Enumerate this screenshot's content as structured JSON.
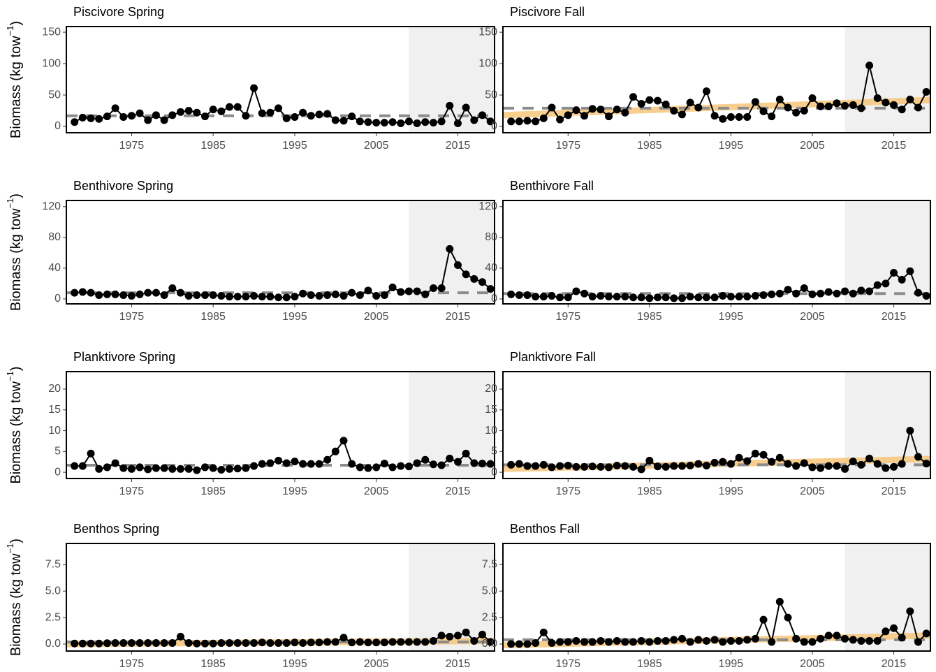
{
  "y_axis_label": {
    "text": "Biomass (kg tow",
    "sup": "−1",
    "close": ")"
  },
  "chart_data": [
    {
      "type": "line",
      "title": "Piscivore Spring",
      "xlim": [
        1967,
        2019.5
      ],
      "xticks": [
        1975,
        1985,
        1995,
        2005,
        2015
      ],
      "ylim": [
        -10,
        159
      ],
      "yticks": [
        0,
        50,
        100,
        150
      ],
      "shade_from": 2009,
      "mean": 17,
      "color": "#000000",
      "x": [
        1968,
        1969,
        1970,
        1971,
        1972,
        1973,
        1974,
        1975,
        1976,
        1977,
        1978,
        1979,
        1980,
        1981,
        1982,
        1983,
        1984,
        1985,
        1986,
        1987,
        1988,
        1989,
        1990,
        1991,
        1992,
        1993,
        1994,
        1995,
        1996,
        1997,
        1998,
        1999,
        2000,
        2001,
        2002,
        2003,
        2004,
        2005,
        2006,
        2007,
        2008,
        2009,
        2010,
        2011,
        2012,
        2013,
        2014,
        2015,
        2016,
        2017,
        2018,
        2019
      ],
      "values": [
        7,
        14,
        13,
        12,
        16,
        29,
        15,
        17,
        21,
        10,
        18,
        10,
        18,
        23,
        25,
        22,
        16,
        27,
        24,
        31,
        31,
        17,
        61,
        21,
        22,
        29,
        13,
        15,
        22,
        17,
        19,
        20,
        10,
        9,
        16,
        8,
        7,
        6,
        6,
        7,
        5,
        8,
        5,
        7,
        6,
        8,
        33,
        5,
        30,
        10,
        18,
        8
      ]
    },
    {
      "type": "line",
      "title": "Piscivore Fall",
      "xlim": [
        1967,
        2019.5
      ],
      "xticks": [
        1975,
        1985,
        1995,
        2005,
        2015
      ],
      "ylim": [
        -10,
        159
      ],
      "yticks": [
        0,
        50,
        100,
        150
      ],
      "shade_from": 2009,
      "mean": 29,
      "trend": [
        18,
        42
      ],
      "color": "#000000",
      "x": [
        1968,
        1969,
        1970,
        1971,
        1972,
        1973,
        1974,
        1975,
        1976,
        1977,
        1978,
        1979,
        1980,
        1981,
        1982,
        1983,
        1984,
        1985,
        1986,
        1987,
        1988,
        1989,
        1990,
        1991,
        1992,
        1993,
        1994,
        1995,
        1996,
        1997,
        1998,
        1999,
        2000,
        2001,
        2002,
        2003,
        2004,
        2005,
        2006,
        2007,
        2008,
        2009,
        2010,
        2011,
        2012,
        2013,
        2014,
        2015,
        2016,
        2017,
        2018,
        2019
      ],
      "values": [
        8,
        8,
        9,
        8,
        13,
        30,
        11,
        18,
        26,
        17,
        28,
        27,
        16,
        27,
        22,
        47,
        36,
        42,
        41,
        35,
        25,
        19,
        38,
        30,
        56,
        17,
        12,
        15,
        15,
        15,
        39,
        24,
        16,
        43,
        30,
        22,
        25,
        45,
        32,
        32,
        37,
        33,
        34,
        29,
        97,
        45,
        38,
        34,
        27,
        43,
        30,
        55
      ]
    },
    {
      "type": "line",
      "title": "Benthivore Spring",
      "xlim": [
        1967,
        2019.5
      ],
      "xticks": [
        1975,
        1985,
        1995,
        2005,
        2015
      ],
      "ylim": [
        -6.4,
        128
      ],
      "yticks": [
        0,
        40,
        80,
        120
      ],
      "shade_from": 2009,
      "mean": 8,
      "color": "#000000",
      "x": [
        1968,
        1969,
        1970,
        1971,
        1972,
        1973,
        1974,
        1975,
        1976,
        1977,
        1978,
        1979,
        1980,
        1981,
        1982,
        1983,
        1984,
        1985,
        1986,
        1987,
        1988,
        1989,
        1990,
        1991,
        1992,
        1993,
        1994,
        1995,
        1996,
        1997,
        1998,
        1999,
        2000,
        2001,
        2002,
        2003,
        2004,
        2005,
        2006,
        2007,
        2008,
        2009,
        2010,
        2011,
        2012,
        2013,
        2014,
        2015,
        2016,
        2017,
        2018,
        2019
      ],
      "values": [
        8,
        9,
        8,
        5,
        6,
        6,
        5,
        4,
        6,
        8,
        8,
        5,
        14,
        8,
        4,
        5,
        5,
        5,
        4,
        3,
        3,
        3,
        4,
        3,
        3,
        2,
        2,
        3,
        7,
        5,
        4,
        5,
        6,
        4,
        8,
        5,
        11,
        4,
        5,
        15,
        9,
        10,
        10,
        6,
        14,
        14,
        65,
        44,
        32,
        26,
        22,
        13
      ]
    },
    {
      "type": "line",
      "title": "Benthivore Fall",
      "xlim": [
        1967,
        2019.5
      ],
      "xticks": [
        1975,
        1985,
        1995,
        2005,
        2015
      ],
      "ylim": [
        -6.4,
        128
      ],
      "yticks": [
        0,
        40,
        80,
        120
      ],
      "shade_from": 2009,
      "mean": 7,
      "color": "#000000",
      "x": [
        1968,
        1969,
        1970,
        1971,
        1972,
        1973,
        1974,
        1975,
        1976,
        1977,
        1978,
        1979,
        1980,
        1981,
        1982,
        1983,
        1984,
        1985,
        1986,
        1987,
        1988,
        1989,
        1990,
        1991,
        1992,
        1993,
        1994,
        1995,
        1996,
        1997,
        1998,
        1999,
        2000,
        2001,
        2002,
        2003,
        2004,
        2005,
        2006,
        2007,
        2008,
        2009,
        2010,
        2011,
        2012,
        2013,
        2014,
        2015,
        2016,
        2017,
        2018,
        2019
      ],
      "values": [
        6,
        5,
        5,
        3,
        3,
        4,
        2,
        2,
        10,
        7,
        3,
        4,
        3,
        3,
        3,
        2,
        2,
        1,
        2,
        2,
        1,
        1,
        3,
        2,
        2,
        2,
        4,
        3,
        3,
        3,
        4,
        5,
        6,
        7,
        12,
        7,
        14,
        6,
        7,
        9,
        7,
        10,
        7,
        11,
        10,
        18,
        20,
        34,
        25,
        36,
        8,
        4
      ]
    },
    {
      "type": "line",
      "title": "Planktivore Spring",
      "xlim": [
        1967,
        2019.5
      ],
      "xticks": [
        1975,
        1985,
        1995,
        2005,
        2015
      ],
      "ylim": [
        -1.5,
        24.2
      ],
      "yticks": [
        0,
        5,
        10,
        15,
        20
      ],
      "shade_from": 2009,
      "mean": 1.7,
      "color": "#000000",
      "x": [
        1968,
        1969,
        1970,
        1971,
        1972,
        1973,
        1974,
        1975,
        1976,
        1977,
        1978,
        1979,
        1980,
        1981,
        1982,
        1983,
        1984,
        1985,
        1986,
        1987,
        1988,
        1989,
        1990,
        1991,
        1992,
        1993,
        1994,
        1995,
        1996,
        1997,
        1998,
        1999,
        2000,
        2001,
        2002,
        2003,
        2004,
        2005,
        2006,
        2007,
        2008,
        2009,
        2010,
        2011,
        2012,
        2013,
        2014,
        2015,
        2016,
        2017,
        2018,
        2019
      ],
      "values": [
        1.5,
        1.5,
        4.5,
        0.8,
        1.2,
        2.2,
        1.0,
        0.8,
        1.2,
        0.7,
        1.0,
        1.0,
        0.8,
        0.8,
        0.8,
        0.5,
        1.2,
        1.0,
        0.6,
        0.8,
        0.9,
        1.0,
        1.5,
        2.0,
        2.2,
        2.8,
        2.2,
        2.6,
        2.0,
        2.0,
        2.0,
        3.0,
        5.0,
        7.6,
        2.0,
        1.2,
        1.0,
        1.2,
        2.1,
        1.2,
        1.5,
        1.4,
        2.2,
        3.0,
        1.9,
        1.7,
        3.3,
        2.5,
        4.5,
        2.2,
        2.1,
        2.0
      ]
    },
    {
      "type": "line",
      "title": "Planktivore Fall",
      "xlim": [
        1967,
        2019.5
      ],
      "xticks": [
        1975,
        1985,
        1995,
        2005,
        2015
      ],
      "ylim": [
        -1.5,
        24.2
      ],
      "yticks": [
        0,
        5,
        10,
        15,
        20
      ],
      "shade_from": 2009,
      "mean": 1.8,
      "trend": [
        0.8,
        3.2
      ],
      "color": "#000000",
      "x": [
        1968,
        1969,
        1970,
        1971,
        1972,
        1973,
        1974,
        1975,
        1976,
        1977,
        1978,
        1979,
        1980,
        1981,
        1982,
        1983,
        1984,
        1985,
        1986,
        1987,
        1988,
        1989,
        1990,
        1991,
        1992,
        1993,
        1994,
        1995,
        1996,
        1997,
        1998,
        1999,
        2000,
        2001,
        2002,
        2003,
        2004,
        2005,
        2006,
        2007,
        2008,
        2009,
        2010,
        2011,
        2012,
        2013,
        2014,
        2015,
        2016,
        2017,
        2018,
        2019
      ],
      "values": [
        1.8,
        2.0,
        1.5,
        1.5,
        1.8,
        1.2,
        1.5,
        1.6,
        1.3,
        1.3,
        1.4,
        1.3,
        1.2,
        1.6,
        1.5,
        1.3,
        0.7,
        2.8,
        1.4,
        1.3,
        1.5,
        1.5,
        1.6,
        2.0,
        1.6,
        2.3,
        2.5,
        2.0,
        3.5,
        2.7,
        4.5,
        4.2,
        2.5,
        3.5,
        2.0,
        1.5,
        2.2,
        1.2,
        1.0,
        1.5,
        1.5,
        0.8,
        2.6,
        1.8,
        3.3,
        2.0,
        1.0,
        1.3,
        2.0,
        10,
        3.7,
        2.1
      ]
    },
    {
      "type": "line",
      "title": "Benthos Spring",
      "xlim": [
        1967,
        2019.5
      ],
      "xticks": [
        1975,
        1985,
        1995,
        2005,
        2015
      ],
      "ylim": [
        -0.66,
        9.5
      ],
      "yticks": [
        {
          "value": 0,
          "label": "0.0"
        },
        {
          "value": 2.5,
          "label": "2.5"
        },
        {
          "value": 5,
          "label": "5.0"
        },
        {
          "value": 7.5,
          "label": "7.5"
        }
      ],
      "shade_from": 2009,
      "mean": 0.2,
      "trend": [
        0.0,
        0.3
      ],
      "color": "#000000",
      "x": [
        1968,
        1969,
        1970,
        1971,
        1972,
        1973,
        1974,
        1975,
        1976,
        1977,
        1978,
        1979,
        1980,
        1981,
        1982,
        1983,
        1984,
        1985,
        1986,
        1987,
        1988,
        1989,
        1990,
        1991,
        1992,
        1993,
        1994,
        1995,
        1996,
        1997,
        1998,
        1999,
        2000,
        2001,
        2002,
        2003,
        2004,
        2005,
        2006,
        2007,
        2008,
        2009,
        2010,
        2011,
        2012,
        2013,
        2014,
        2015,
        2016,
        2017,
        2018,
        2019
      ],
      "values": [
        0.05,
        0.05,
        0.05,
        0.05,
        0.08,
        0.1,
        0.1,
        0.1,
        0.1,
        0.1,
        0.1,
        0.1,
        0.1,
        0.7,
        0.1,
        0.05,
        0.05,
        0.05,
        0.1,
        0.1,
        0.1,
        0.1,
        0.1,
        0.15,
        0.1,
        0.1,
        0.1,
        0.15,
        0.1,
        0.15,
        0.15,
        0.2,
        0.2,
        0.6,
        0.15,
        0.2,
        0.15,
        0.15,
        0.15,
        0.2,
        0.2,
        0.2,
        0.2,
        0.2,
        0.3,
        0.8,
        0.7,
        0.8,
        1.1,
        0.3,
        0.9,
        0.2
      ]
    },
    {
      "type": "line",
      "title": "Benthos Fall",
      "xlim": [
        1967,
        2019.5
      ],
      "xticks": [
        1975,
        1985,
        1995,
        2005,
        2015
      ],
      "ylim": [
        -0.66,
        9.5
      ],
      "yticks": [
        {
          "value": 0,
          "label": "0.0"
        },
        {
          "value": 2.5,
          "label": "2.5"
        },
        {
          "value": 5,
          "label": "5.0"
        },
        {
          "value": 7.5,
          "label": "7.5"
        }
      ],
      "shade_from": 2009,
      "mean": 0.4,
      "trend": [
        -0.1,
        0.8
      ],
      "color": "#000000",
      "x": [
        1968,
        1969,
        1970,
        1971,
        1972,
        1973,
        1974,
        1975,
        1976,
        1977,
        1978,
        1979,
        1980,
        1981,
        1982,
        1983,
        1984,
        1985,
        1986,
        1987,
        1988,
        1989,
        1990,
        1991,
        1992,
        1993,
        1994,
        1995,
        1996,
        1997,
        1998,
        1999,
        2000,
        2001,
        2002,
        2003,
        2004,
        2005,
        2006,
        2007,
        2008,
        2009,
        2010,
        2011,
        2012,
        2013,
        2014,
        2015,
        2016,
        2017,
        2018,
        2019
      ],
      "values": [
        0,
        0,
        0,
        0.1,
        1.1,
        0.1,
        0.2,
        0.2,
        0.3,
        0.2,
        0.2,
        0.3,
        0.2,
        0.3,
        0.2,
        0.2,
        0.3,
        0.2,
        0.3,
        0.3,
        0.4,
        0.5,
        0.2,
        0.4,
        0.3,
        0.4,
        0.2,
        0.3,
        0.3,
        0.4,
        0.5,
        2.3,
        0.2,
        4.0,
        2.5,
        0.5,
        0.2,
        0.2,
        0.5,
        0.8,
        0.8,
        0.5,
        0.4,
        0.3,
        0.3,
        0.3,
        1.2,
        1.5,
        0.6,
        3.1,
        0.2,
        1.0
      ]
    }
  ]
}
